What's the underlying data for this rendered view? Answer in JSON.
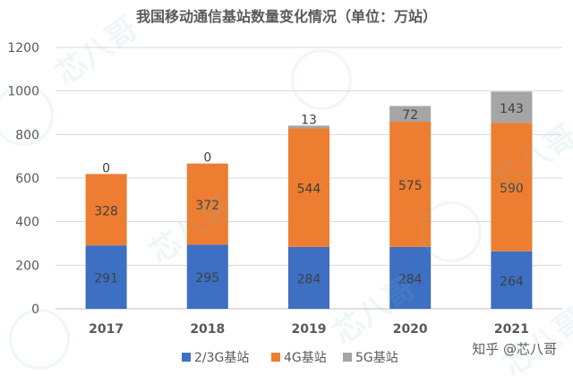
{
  "chart_data": {
    "type": "bar",
    "stacked": true,
    "title": "我国移动通信基站数量变化情况（单位：万站）",
    "categories": [
      "2017",
      "2018",
      "2019",
      "2020",
      "2021"
    ],
    "series": [
      {
        "name": "2/3G基站",
        "values": [
          291,
          295,
          284,
          284,
          264
        ],
        "color": "#3d6fc3"
      },
      {
        "name": "4G基站",
        "values": [
          328,
          372,
          544,
          575,
          590
        ],
        "color": "#ed7d31"
      },
      {
        "name": "5G基站",
        "values": [
          0,
          0,
          13,
          72,
          143
        ],
        "color": "#a5a5a5"
      }
    ],
    "ylim": [
      0,
      1200
    ],
    "yticks": [
      0,
      200,
      400,
      600,
      800,
      1000,
      1200
    ],
    "grid": true,
    "legend": "bottom-center"
  },
  "watermark": {
    "text": "芯八哥"
  },
  "credit": "知乎 @芯八哥"
}
